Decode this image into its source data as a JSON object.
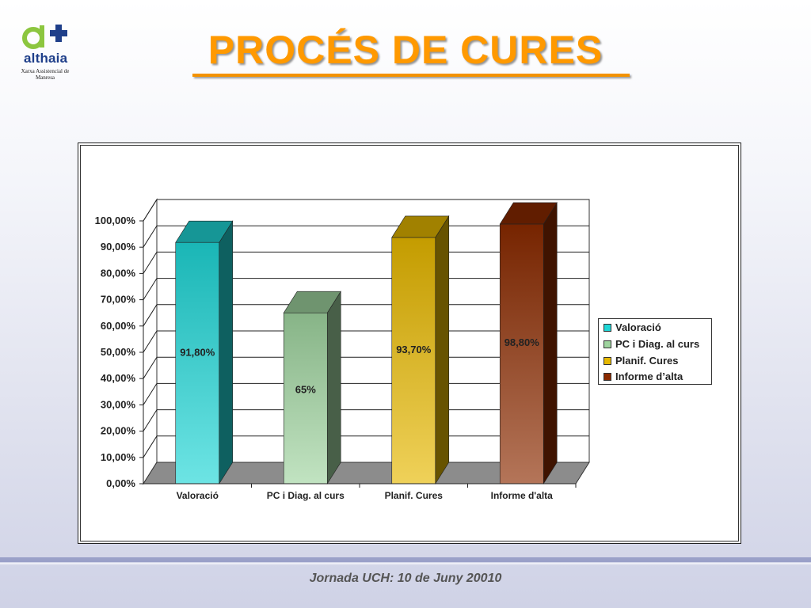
{
  "logo": {
    "name": "althaia",
    "subtitle": "Xarxa Assistencial de Manresa"
  },
  "slide": {
    "title": "PROCÉS DE CURES",
    "footer": "Jornada UCH: 10 de Juny 20010"
  },
  "chart_data": {
    "type": "bar",
    "style": "3d-column",
    "title": "",
    "xlabel": "",
    "ylabel": "",
    "ylim": [
      0,
      100
    ],
    "yticks": [
      "0,00%",
      "10,00%",
      "20,00%",
      "30,00%",
      "40,00%",
      "50,00%",
      "60,00%",
      "70,00%",
      "80,00%",
      "90,00%",
      "100,00%"
    ],
    "grid": true,
    "legend_position": "right",
    "categories": [
      "Valoració",
      "PC i Diag. al curs",
      "Planif. Cures",
      "Informe d'alta"
    ],
    "values": [
      91.8,
      65,
      93.7,
      98.8
    ],
    "data_labels": [
      "91,80%",
      "65%",
      "93,70%",
      "98,80%"
    ],
    "legend": [
      "Valoració",
      "PC i Diag. al curs",
      "Planif. Cures",
      "Informe d’alta"
    ],
    "colors": [
      "#1fd6d6",
      "#9fd49f",
      "#e6b800",
      "#8b2a00"
    ]
  }
}
